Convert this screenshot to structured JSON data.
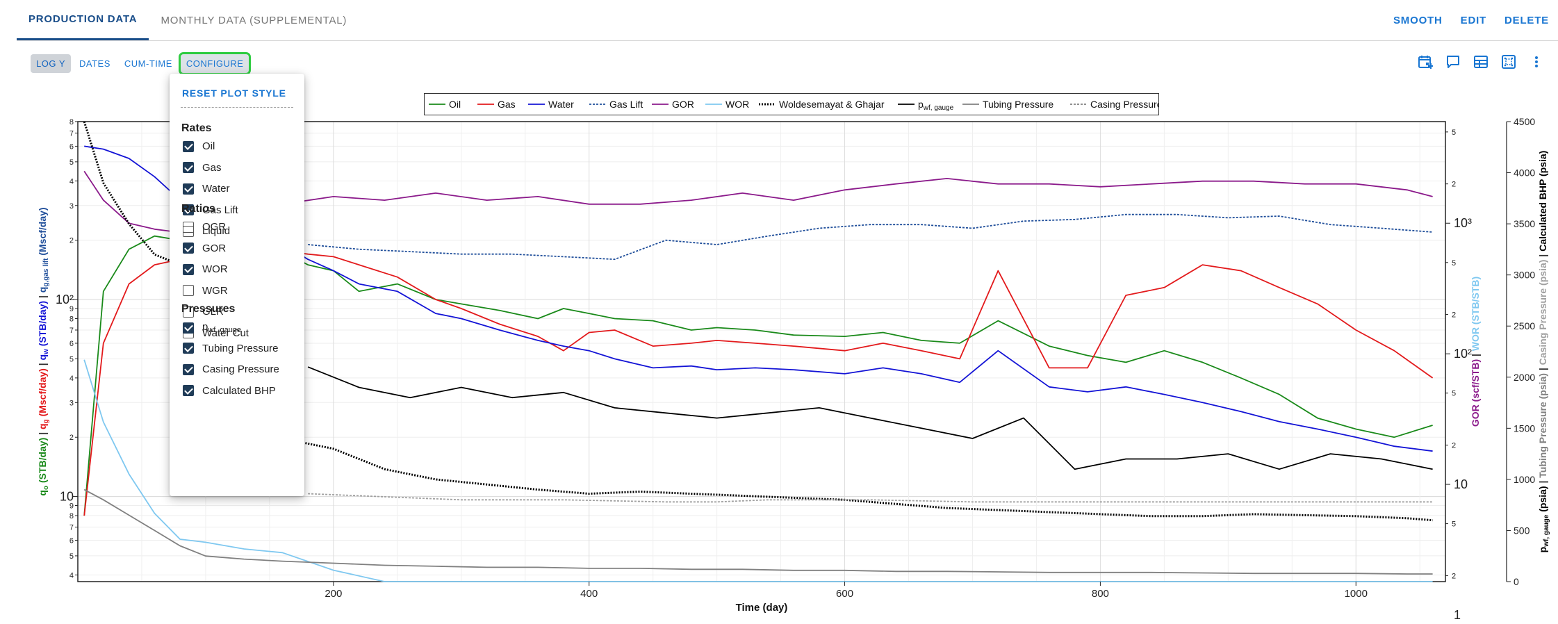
{
  "tabs": [
    {
      "label": "PRODUCTION DATA",
      "active": true
    },
    {
      "label": "MONTHLY DATA (SUPPLEMENTAL)",
      "active": false
    }
  ],
  "top_actions": [
    "SMOOTH",
    "EDIT",
    "DELETE"
  ],
  "toolbar": {
    "log_y": "LOG Y",
    "dates": "DATES",
    "cum_time": "CUM-TIME",
    "configure": "CONFIGURE"
  },
  "icons": [
    "calendar-event-icon",
    "comment-icon",
    "table-icon",
    "fit-screen-icon",
    "more-vert-icon"
  ],
  "menu": {
    "reset": "RESET PLOT STYLE",
    "sections": [
      {
        "title": "Rates",
        "items": [
          {
            "label": "Oil",
            "checked": true
          },
          {
            "label": "Gas",
            "checked": true
          },
          {
            "label": "Water",
            "checked": true
          },
          {
            "label": "Gas Lift",
            "checked": true
          },
          {
            "label": "Liquid",
            "checked": false
          }
        ]
      },
      {
        "title": "Ratios",
        "items": [
          {
            "label": "OGR",
            "checked": false
          },
          {
            "label": "GOR",
            "checked": true
          },
          {
            "label": "WOR",
            "checked": true
          },
          {
            "label": "WGR",
            "checked": false
          },
          {
            "label": "GLR",
            "checked": false
          },
          {
            "label": "Water Cut",
            "checked": false
          }
        ]
      },
      {
        "title": "Pressures",
        "items": [
          {
            "label": "p",
            "sub": "wf, gauge",
            "checked": true
          },
          {
            "label": "Tubing Pressure",
            "checked": true
          },
          {
            "label": "Casing Pressure",
            "checked": true
          },
          {
            "label": "Calculated BHP",
            "checked": true
          }
        ]
      }
    ]
  },
  "chart_data": {
    "type": "line",
    "xlabel": "Time (day)",
    "xlim": [
      0,
      1070
    ],
    "x_ticks": [
      200,
      400,
      600,
      800,
      1000
    ],
    "left_axis": {
      "scale": "log",
      "ylim": [
        3.7,
        800
      ],
      "major_ticks": [
        {
          "v": 10,
          "t": "10"
        },
        {
          "v": 100,
          "t": "10²"
        }
      ],
      "minor_ticks": [
        4,
        5,
        6,
        7,
        8,
        9,
        20,
        30,
        40,
        50,
        60,
        70,
        80,
        90,
        200,
        300,
        400,
        500,
        600,
        700,
        800
      ],
      "label_parts": [
        {
          "text": "q",
          "sub": "o",
          "unit": " (STB/day)",
          "color": "#1a8a1a"
        },
        {
          "text": "q",
          "sub": "g",
          "unit": " (Mscf/day)",
          "color": "#e31a1c"
        },
        {
          "text": "q",
          "sub": "w",
          "unit": " (STB/day)",
          "color": "#1414d6"
        },
        {
          "text": "q",
          "sub": "g,gas lift",
          "unit": " (Mscf/day)",
          "color": "#1f4e9a"
        }
      ]
    },
    "ratio_axis": {
      "scale": "log",
      "ylim": [
        1.8,
        6000
      ],
      "major_ticks": [
        {
          "v": 10,
          "t": "10"
        },
        {
          "v": 100,
          "t": "10²"
        },
        {
          "v": 1000,
          "t": "10³"
        }
      ],
      "minor_ticks": [
        {
          "v": 2,
          "t": "2"
        },
        {
          "v": 5,
          "t": "5"
        },
        {
          "v": 20,
          "t": "2"
        },
        {
          "v": 50,
          "t": "5"
        },
        {
          "v": 200,
          "t": "2"
        },
        {
          "v": 500,
          "t": "5"
        },
        {
          "v": 2000,
          "t": "2"
        },
        {
          "v": 5000,
          "t": "5"
        }
      ],
      "extra_tick": {
        "v": 1,
        "t": "1"
      },
      "label_gor": "GOR (scf/STB)",
      "label_wor": "WOR (STB/STB)",
      "gor_color": "#8b1a8b",
      "wor_color": "#7fc8f0"
    },
    "pressure_axis": {
      "ylim": [
        0,
        4500
      ],
      "ticks": [
        0,
        500,
        1000,
        1500,
        2000,
        2500,
        3000,
        3500,
        4000,
        4500
      ],
      "label_parts": [
        {
          "text": "p",
          "sub": "wf, gauge",
          "unit": " (psia)",
          "color": "#000000"
        },
        {
          "text": "Tubing Pressure (psia)",
          "color": "#808080"
        },
        {
          "text": "Casing Pressure (psia)",
          "color": "#a0a0a0"
        },
        {
          "text": "Calculated BHP (psia)",
          "color": "#000000"
        }
      ]
    },
    "legend": [
      {
        "name": "Oil",
        "color": "#1a8a1a",
        "dash": ""
      },
      {
        "name": "Gas",
        "color": "#e31a1c",
        "dash": ""
      },
      {
        "name": "Water",
        "color": "#1414d6",
        "dash": ""
      },
      {
        "name": "Gas Lift",
        "color": "#1f4e9a",
        "dash": "3,2"
      },
      {
        "name": "GOR",
        "color": "#8b1a8b",
        "dash": ""
      },
      {
        "name": "WOR",
        "color": "#7fc8f0",
        "dash": ""
      },
      {
        "name": "Woldesemayat & Ghajar",
        "color": "#000000",
        "dash": "2,2",
        "thick": true
      },
      {
        "name": "p",
        "sub": "wf, gauge",
        "color": "#000000",
        "dash": ""
      },
      {
        "name": "Tubing Pressure",
        "color": "#808080",
        "dash": ""
      },
      {
        "name": "Casing Pressure",
        "color": "#808080",
        "dash": "3,2"
      }
    ],
    "series": [
      {
        "name": "Oil",
        "axis": "left",
        "color": "#1a8a1a",
        "x": [
          5,
          20,
          40,
          60,
          80,
          100,
          130,
          150,
          180,
          200,
          220,
          250,
          280,
          300,
          330,
          360,
          380,
          400,
          420,
          450,
          480,
          500,
          530,
          560,
          600,
          630,
          660,
          690,
          720,
          760,
          790,
          820,
          850,
          880,
          910,
          940,
          970,
          1000,
          1030,
          1060
        ],
        "y": [
          8,
          110,
          180,
          210,
          200,
          210,
          195,
          190,
          150,
          140,
          110,
          120,
          100,
          95,
          88,
          80,
          90,
          85,
          80,
          78,
          70,
          72,
          70,
          66,
          65,
          68,
          62,
          60,
          78,
          58,
          52,
          48,
          55,
          48,
          40,
          33,
          25,
          22,
          20,
          23
        ]
      },
      {
        "name": "Gas",
        "axis": "left",
        "color": "#e31a1c",
        "x": [
          5,
          20,
          40,
          60,
          80,
          100,
          130,
          150,
          180,
          200,
          220,
          250,
          280,
          300,
          330,
          360,
          380,
          400,
          420,
          450,
          480,
          500,
          530,
          560,
          600,
          630,
          660,
          690,
          720,
          760,
          790,
          820,
          850,
          880,
          910,
          940,
          970,
          1000,
          1030,
          1060
        ],
        "y": [
          8,
          60,
          120,
          150,
          160,
          170,
          175,
          180,
          170,
          165,
          150,
          130,
          100,
          90,
          75,
          65,
          55,
          68,
          70,
          58,
          60,
          62,
          60,
          58,
          55,
          60,
          55,
          50,
          140,
          45,
          45,
          105,
          115,
          150,
          140,
          115,
          95,
          70,
          55,
          40
        ]
      },
      {
        "name": "Water",
        "axis": "left",
        "color": "#1414d6",
        "x": [
          5,
          20,
          40,
          60,
          80,
          100,
          130,
          150,
          180,
          200,
          220,
          250,
          280,
          300,
          330,
          360,
          380,
          400,
          420,
          450,
          480,
          500,
          530,
          560,
          600,
          630,
          660,
          690,
          720,
          760,
          790,
          820,
          850,
          880,
          910,
          940,
          970,
          1000,
          1030,
          1060
        ],
        "y": [
          600,
          580,
          520,
          420,
          320,
          300,
          250,
          210,
          160,
          140,
          120,
          110,
          85,
          80,
          70,
          62,
          58,
          55,
          50,
          45,
          46,
          44,
          45,
          44,
          42,
          45,
          42,
          38,
          55,
          36,
          34,
          36,
          33,
          30,
          27,
          24,
          22,
          20,
          18,
          17
        ]
      },
      {
        "name": "Gas Lift",
        "axis": "left",
        "color": "#1f4e9a",
        "dash": "3,2",
        "x": [
          180,
          220,
          260,
          300,
          340,
          380,
          420,
          460,
          500,
          540,
          580,
          620,
          660,
          700,
          740,
          780,
          820,
          860,
          900,
          940,
          980,
          1020,
          1060
        ],
        "y": [
          190,
          180,
          175,
          170,
          170,
          165,
          160,
          200,
          190,
          210,
          230,
          240,
          240,
          230,
          250,
          255,
          270,
          270,
          260,
          265,
          240,
          230,
          220
        ]
      },
      {
        "name": "GOR",
        "axis": "ratio",
        "color": "#8b1a8b",
        "x": [
          5,
          20,
          40,
          60,
          80,
          100,
          130,
          160,
          200,
          240,
          280,
          320,
          360,
          400,
          440,
          480,
          520,
          560,
          600,
          640,
          680,
          720,
          760,
          800,
          840,
          880,
          920,
          960,
          1000,
          1040,
          1060
        ],
        "y": [
          2500,
          1500,
          1000,
          900,
          850,
          850,
          1100,
          1400,
          1600,
          1500,
          1700,
          1500,
          1600,
          1400,
          1400,
          1500,
          1700,
          1500,
          1800,
          2000,
          2200,
          2000,
          2000,
          1900,
          2000,
          2100,
          2100,
          2000,
          2000,
          1800,
          1600
        ]
      },
      {
        "name": "WOR",
        "axis": "ratio",
        "color": "#7fc8f0",
        "x": [
          5,
          20,
          40,
          60,
          80,
          100,
          130,
          160,
          200,
          240,
          280,
          320,
          360,
          400,
          440,
          480,
          520,
          560,
          600,
          640,
          680,
          720,
          760,
          800,
          840,
          880,
          920,
          960,
          1000,
          1040,
          1060
        ],
        "y": [
          90,
          30,
          12,
          6,
          3.8,
          3.6,
          3.2,
          3,
          2.2,
          1.2,
          1.1,
          1.15,
          1.1,
          1.1,
          1.0,
          1.05,
          1.0,
          1.0,
          0.95,
          0.9,
          0.9,
          0.9,
          0.85,
          0.9,
          0.85,
          0.9,
          0.85,
          0.9,
          0.85,
          0.8,
          0.8
        ]
      },
      {
        "name": "Woldesemayat & Ghajar",
        "axis": "pressure",
        "color": "#000000",
        "dash": "2,2",
        "thick": true,
        "x": [
          5,
          20,
          40,
          60,
          80,
          100,
          130,
          160,
          200,
          240,
          280,
          320,
          360,
          400,
          440,
          480,
          520,
          560,
          600,
          640,
          680,
          720,
          760,
          800,
          840,
          880,
          920,
          960,
          1000,
          1040,
          1060
        ],
        "y": [
          4500,
          3900,
          3500,
          3200,
          3100,
          3000,
          1600,
          1400,
          1300,
          1100,
          1000,
          950,
          900,
          860,
          880,
          860,
          840,
          820,
          800,
          760,
          720,
          700,
          680,
          660,
          640,
          640,
          660,
          650,
          640,
          620,
          600
        ]
      },
      {
        "name": "p wf, gauge",
        "axis": "pressure",
        "color": "#000000",
        "x": [
          180,
          220,
          260,
          300,
          340,
          380,
          420,
          460,
          500,
          540,
          580,
          620,
          660,
          700,
          740,
          780,
          820,
          860,
          900,
          940,
          980,
          1020,
          1060
        ],
        "y": [
          2100,
          1900,
          1800,
          1900,
          1800,
          1850,
          1700,
          1650,
          1600,
          1650,
          1700,
          1600,
          1500,
          1400,
          1600,
          1100,
          1200,
          1200,
          1250,
          1100,
          1250,
          1200,
          1100
        ]
      },
      {
        "name": "Tubing Pressure",
        "axis": "pressure",
        "color": "#808080",
        "x": [
          5,
          20,
          40,
          60,
          80,
          100,
          130,
          160,
          200,
          240,
          280,
          320,
          360,
          400,
          440,
          480,
          520,
          560,
          600,
          640,
          680,
          720,
          760,
          800,
          840,
          880,
          920,
          960,
          1000,
          1040,
          1060
        ],
        "y": [
          900,
          800,
          650,
          500,
          350,
          250,
          220,
          200,
          180,
          160,
          150,
          140,
          140,
          130,
          130,
          120,
          120,
          110,
          110,
          100,
          100,
          95,
          90,
          90,
          90,
          85,
          80,
          80,
          80,
          75,
          75
        ]
      },
      {
        "name": "Casing Pressure",
        "axis": "pressure",
        "color": "#a0a0a0",
        "dash": "3,2",
        "x": [
          180,
          220,
          260,
          300,
          340,
          380,
          420,
          460,
          500,
          540,
          580,
          620,
          660,
          700,
          740,
          780,
          820,
          860,
          900,
          940,
          980,
          1020,
          1060
        ],
        "y": [
          860,
          840,
          820,
          800,
          800,
          800,
          790,
          780,
          780,
          800,
          800,
          800,
          790,
          780,
          780,
          780,
          780,
          780,
          780,
          780,
          780,
          780,
          780
        ]
      }
    ]
  }
}
